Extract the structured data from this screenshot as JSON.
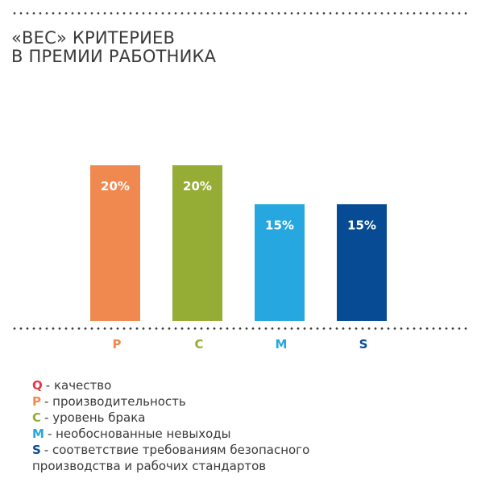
{
  "title_lines": [
    "«ВЕС» КРИТЕРИЕВ",
    "В ПРЕМИИ РАБОТНИКА"
  ],
  "chart_data": {
    "type": "bar",
    "categories": [
      "P",
      "C",
      "M",
      "S"
    ],
    "values": [
      20,
      20,
      15,
      15
    ],
    "value_labels": [
      "20%",
      "20%",
      "15%",
      "15%"
    ],
    "colors": [
      "#f0894f",
      "#95ac35",
      "#26a7df",
      "#064b93"
    ],
    "ylim": [
      0,
      20
    ],
    "grid": false,
    "title": "«ВЕС» КРИТЕРИЕВ В ПРЕМИИ РАБОТНИКА",
    "xlabel": "",
    "ylabel": ""
  },
  "legend": [
    {
      "key": "Q",
      "text": "- качество",
      "color": "#e8344a"
    },
    {
      "key": "P",
      "text": "- производительность",
      "color": "#f0894f"
    },
    {
      "key": "C",
      "text": "- уровень брака",
      "color": "#95ac35"
    },
    {
      "key": "M",
      "text": "- необоснованные невыходы",
      "color": "#26a7df"
    },
    {
      "key": "S",
      "text": "- соответствие требованиям безопасного",
      "color": "#064b93"
    },
    {
      "key": "",
      "text": "производства и рабочих стандартов",
      "color": ""
    }
  ]
}
